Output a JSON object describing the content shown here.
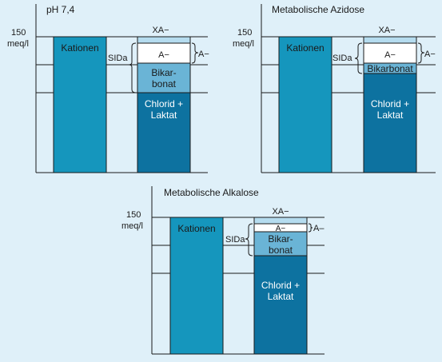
{
  "colors": {
    "background": "#dff0f9",
    "kationen": "#1596bd",
    "chlorid": "#0d72a0",
    "bikarbonat": "#6ab4d6",
    "xa": "#b5dcef",
    "a": "#ffffff",
    "line": "#1a1a1a"
  },
  "panels": [
    {
      "title": "pH 7,4",
      "axis_value": "150",
      "axis_unit": "meq/l",
      "kationen_label": "Kationen",
      "sida_label": "SIDa",
      "xa_label": "XA−",
      "a_inner_label": "A−",
      "a_outer_label": "A−",
      "bikarbonat_line1": "Bikar-",
      "bikarbonat_line2": "bonat",
      "chlorid_line1": "Chlorid +",
      "chlorid_line2": "Laktat"
    },
    {
      "title": "Metabolische Azidose",
      "axis_value": "150",
      "axis_unit": "meq/l",
      "kationen_label": "Kationen",
      "sida_label": "SIDa",
      "xa_label": "XA−",
      "a_inner_label": "A−",
      "a_outer_label": "A−",
      "bikarbonat_line1": "Bikarbonat",
      "chlorid_line1": "Chlorid +",
      "chlorid_line2": "Laktat"
    },
    {
      "title": "Metabolische Alkalose",
      "axis_value": "150",
      "axis_unit": "meq/l",
      "kationen_label": "Kationen",
      "sida_label": "SIDa",
      "xa_label": "XA−",
      "a_inner_label": "A−",
      "a_outer_label": "A–",
      "bikarbonat_line1": "Bikar-",
      "bikarbonat_line2": "bonat",
      "chlorid_line1": "Chlorid +",
      "chlorid_line2": "Laktat"
    }
  ]
}
